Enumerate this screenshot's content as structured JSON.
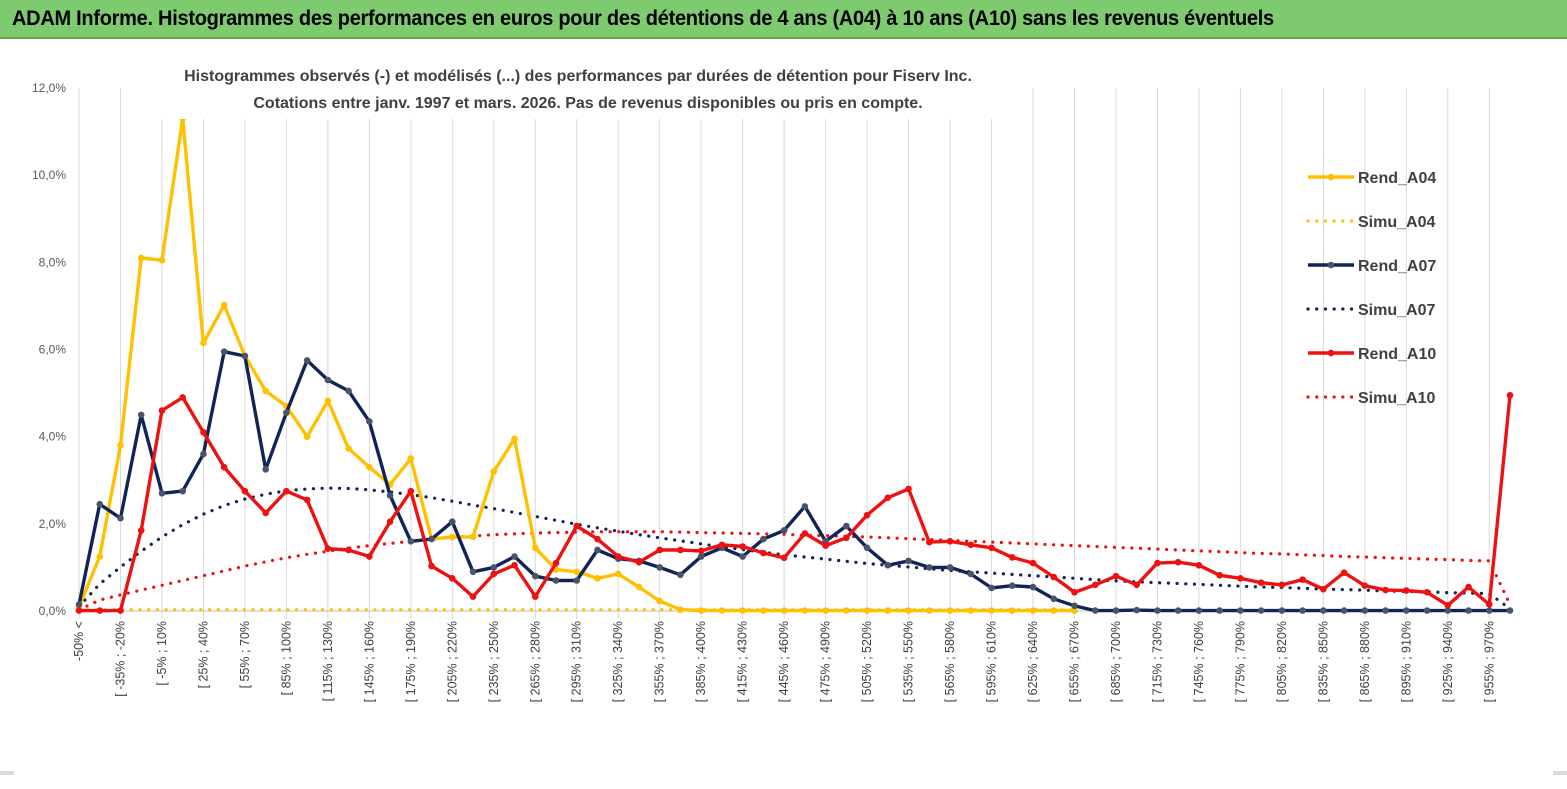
{
  "banner": {
    "title": "ADAM Informe. Histogrammes des performances en euros pour des détentions de 4 ans (A04) à 10 ans (A10) sans les revenus éventuels",
    "background": "#7ecb6f"
  },
  "chart_data": {
    "type": "line",
    "title_line1": "Histogrammes observés (-) et modélisés (...) des performances par durées de détention pour Fiserv Inc.",
    "title_line2": "Cotations entre janv. 1997 et mars. 2026. Pas de revenus disponibles ou pris en compte.",
    "xlabel": "",
    "ylabel": "",
    "ylim": [
      0,
      0.12
    ],
    "y_ticks": [
      "0,0%",
      "2,0%",
      "4,0%",
      "6,0%",
      "8,0%",
      "10,0%",
      "12,0%"
    ],
    "y_tick_values": [
      0,
      0.02,
      0.04,
      0.06,
      0.08,
      0.1,
      0.12
    ],
    "grid": "vertical",
    "legend_position": "right",
    "x_tick_labels": [
      "-50% <",
      "[ -35% ; -20%",
      "[ -5% ; 10%",
      "[ 25% ; 40%",
      "[ 55% ; 70%",
      "[ 85% ; 100%",
      "[ 115% ; 130%",
      "[ 145% ; 160%",
      "[ 175% ; 190%",
      "[ 205% ; 220%",
      "[ 235% ; 250%",
      "[ 265% ; 280%",
      "[ 295% ; 310%",
      "[ 325% ; 340%",
      "[ 355% ; 370%",
      "[ 385% ; 400%",
      "[ 415% ; 430%",
      "[ 445% ; 460%",
      "[ 475% ; 490%",
      "[ 505% ; 520%",
      "[ 535% ; 550%",
      "[ 565% ; 580%",
      "[ 595% ; 610%",
      "[ 625% ; 640%",
      "[ 655% ; 670%",
      "[ 685% ; 700%",
      "[ 715% ; 730%",
      "[ 745% ; 760%",
      "[ 775% ; 790%",
      "[ 805% ; 820%",
      "[ 835% ; 850%",
      "[ 865% ; 880%",
      "[ 895% ; 910%",
      "[ 925% ; 940%",
      "[ 955% ; 970%"
    ],
    "x_tick_label_bin_index": [
      0,
      2,
      4,
      6,
      8,
      10,
      12,
      14,
      16,
      18,
      20,
      22,
      24,
      26,
      28,
      30,
      32,
      34,
      36,
      38,
      40,
      42,
      44,
      46,
      48,
      50,
      52,
      54,
      56,
      58,
      60,
      62,
      64,
      66,
      68
    ],
    "bin_count": 70,
    "series": [
      {
        "name": "Rend_A04",
        "style": "solid",
        "color": "#ffc000",
        "values": [
          0.001,
          0.0125,
          0.038,
          0.081,
          0.0805,
          0.113,
          0.0615,
          0.0702,
          0.0585,
          0.0505,
          0.047,
          0.04,
          0.0482,
          0.0373,
          0.033,
          0.029,
          0.035,
          0.0165,
          0.017,
          0.017,
          0.032,
          0.0395,
          0.0145,
          0.0095,
          0.009,
          0.0075,
          0.0085,
          0.0055,
          0.0023,
          0.0003,
          0.0001,
          0.0001,
          0.0001,
          0.0001,
          0.0001,
          0.0001,
          0.0001,
          0.0001,
          0.0001,
          0.0001,
          0.0001,
          0.0001,
          0.0001,
          0.0001,
          0.0001,
          0.0001,
          0.0001,
          0.0001,
          0.0001,
          null,
          null,
          null,
          null,
          null,
          null,
          null,
          null,
          null,
          null,
          null,
          null,
          null,
          null,
          null,
          null,
          null,
          null,
          null,
          null,
          null
        ]
      },
      {
        "name": "Simu_A04",
        "style": "dotted",
        "color": "#ffc000",
        "values": [
          0.0003,
          0.0003,
          0.0003,
          0.0003,
          0.0003,
          0.0003,
          0.0003,
          0.0003,
          0.0003,
          0.0003,
          0.0003,
          0.0003,
          0.0003,
          0.0003,
          0.0003,
          0.0003,
          0.0003,
          0.0003,
          0.0003,
          0.0003,
          0.0003,
          0.0003,
          0.0003,
          0.0003,
          0.0003,
          0.0003,
          0.0003,
          0.0003,
          0.0003,
          0.0003,
          0.0003,
          0.0003,
          0.0003,
          0.0003,
          0.0003,
          0.0003,
          0.0003,
          0.0003,
          0.0003,
          0.0003,
          0.0003,
          0.0003,
          0.0003,
          0.0003,
          0.0003,
          0.0003,
          0.0003,
          0.0003,
          0.0003,
          null,
          null,
          null,
          null,
          null,
          null,
          null,
          null,
          null,
          null,
          null,
          null,
          null,
          null,
          null,
          null,
          null,
          null,
          null,
          null,
          null
        ]
      },
      {
        "name": "Rend_A07",
        "style": "solid",
        "color": "#0f2557",
        "values": [
          0.0015,
          0.0245,
          0.0213,
          0.045,
          0.027,
          0.0275,
          0.036,
          0.0595,
          0.0585,
          0.0325,
          0.0455,
          0.0575,
          0.053,
          0.0505,
          0.0435,
          0.0265,
          0.016,
          0.0165,
          0.0205,
          0.009,
          0.01,
          0.0125,
          0.008,
          0.007,
          0.007,
          0.014,
          0.012,
          0.0115,
          0.01,
          0.0083,
          0.0125,
          0.0145,
          0.0125,
          0.0165,
          0.0185,
          0.024,
          0.016,
          0.0195,
          0.0145,
          0.0105,
          0.0115,
          0.01,
          0.01,
          0.0085,
          0.0053,
          0.0058,
          0.0055,
          0.0028,
          0.0012,
          0.0001,
          0.0001,
          0.0002,
          0.0001,
          0.0001,
          0.0001,
          0.0001,
          0.0001,
          0.0001,
          0.0001,
          0.0001,
          0.0001,
          0.0001,
          0.0001,
          0.0001,
          0.0001,
          0.0001,
          0.0001,
          0.0001,
          0.0001,
          0.0001
        ]
      },
      {
        "name": "Simu_A07",
        "style": "dotted",
        "color": "#0f2557",
        "values": [
          0.001,
          0.0062,
          0.0101,
          0.0137,
          0.017,
          0.0198,
          0.0222,
          0.0242,
          0.0257,
          0.0268,
          0.0276,
          0.028,
          0.0282,
          0.0281,
          0.0278,
          0.0273,
          0.0267,
          0.026,
          0.0252,
          0.0243,
          0.0235,
          0.0226,
          0.0217,
          0.0208,
          0.0199,
          0.0191,
          0.0183,
          0.0175,
          0.0168,
          0.0161,
          0.0154,
          0.0147,
          0.0141,
          0.0135,
          0.0129,
          0.0124,
          0.0119,
          0.0114,
          0.0109,
          0.0105,
          0.0101,
          0.0097,
          0.0093,
          0.009,
          0.0087,
          0.0084,
          0.0081,
          0.0078,
          0.0075,
          0.0072,
          0.0069,
          0.0067,
          0.0065,
          0.0063,
          0.0061,
          0.0059,
          0.0057,
          0.0055,
          0.0054,
          0.0052,
          0.005,
          0.0049,
          0.0048,
          0.0046,
          0.0045,
          0.0044,
          0.0042,
          0.0041,
          0.004,
          0.0005
        ]
      },
      {
        "name": "Rend_A10",
        "style": "solid",
        "color": "#ee1111",
        "values": [
          0.0001,
          0.0001,
          0.0001,
          0.0185,
          0.046,
          0.049,
          0.041,
          0.033,
          0.0275,
          0.0225,
          0.0275,
          0.0255,
          0.0143,
          0.014,
          0.0125,
          0.0205,
          0.0275,
          0.0103,
          0.0075,
          0.0033,
          0.0085,
          0.0105,
          0.0033,
          0.011,
          0.0195,
          0.0165,
          0.0125,
          0.0112,
          0.014,
          0.014,
          0.0138,
          0.0152,
          0.0148,
          0.0133,
          0.0122,
          0.0178,
          0.015,
          0.0168,
          0.022,
          0.026,
          0.028,
          0.0158,
          0.016,
          0.0152,
          0.0145,
          0.0123,
          0.011,
          0.0078,
          0.0043,
          0.006,
          0.008,
          0.006,
          0.011,
          0.0112,
          0.0105,
          0.0082,
          0.0075,
          0.0065,
          0.006,
          0.0072,
          0.005,
          0.0088,
          0.0058,
          0.0048,
          0.0047,
          0.0043,
          0.0013,
          0.0055,
          0.0015,
          0.0495
        ]
      },
      {
        "name": "Simu_A10",
        "style": "dotted",
        "color": "#ee1111",
        "values": [
          0.0003,
          0.0025,
          0.0037,
          0.0048,
          0.0059,
          0.007,
          0.0081,
          0.0092,
          0.0103,
          0.0113,
          0.0122,
          0.013,
          0.0137,
          0.0144,
          0.015,
          0.0155,
          0.016,
          0.0165,
          0.0169,
          0.0172,
          0.0175,
          0.0177,
          0.0179,
          0.018,
          0.0181,
          0.0182,
          0.0182,
          0.0182,
          0.0182,
          0.0181,
          0.018,
          0.0179,
          0.0178,
          0.0177,
          0.0176,
          0.0174,
          0.0173,
          0.0171,
          0.017,
          0.0168,
          0.0166,
          0.0164,
          0.0162,
          0.016,
          0.0158,
          0.0156,
          0.0154,
          0.0152,
          0.015,
          0.0148,
          0.0146,
          0.0144,
          0.0142,
          0.014,
          0.0138,
          0.0136,
          0.0134,
          0.0132,
          0.0131,
          0.0129,
          0.0127,
          0.0125,
          0.0124,
          0.0122,
          0.0121,
          0.0119,
          0.0118,
          0.0116,
          0.0115,
          0.0015
        ]
      }
    ]
  }
}
